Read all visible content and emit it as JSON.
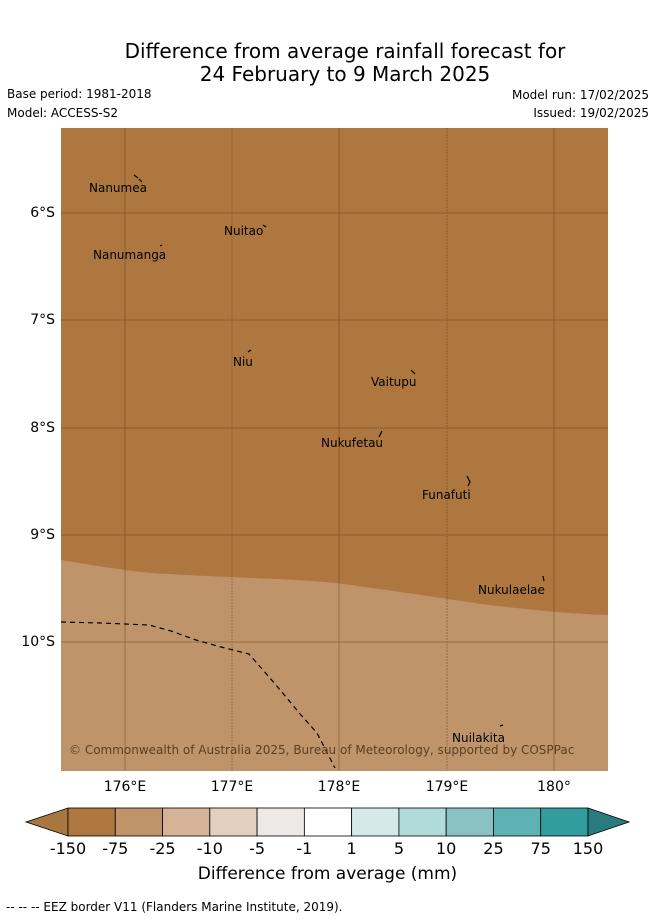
{
  "title": {
    "line1": "Difference from average rainfall forecast for",
    "line2": "24 February to 9 March 2025"
  },
  "meta": {
    "base_period": "Base period: 1981-2018",
    "model": "Model: ACCESS-S2",
    "model_run": "Model run: 17/02/2025",
    "issued": "Issued: 19/02/2025"
  },
  "map": {
    "lat_ticks": [
      "6°S",
      "7°S",
      "8°S",
      "9°S",
      "10°S"
    ],
    "lon_ticks": [
      "176°E",
      "177°E",
      "178°E",
      "179°E",
      "180°"
    ],
    "places": [
      "Nanumea",
      "Nuitao",
      "Nanumanga",
      "Niu",
      "Vaitupu",
      "Nukufetau",
      "Funafuti",
      "Nukulaelae",
      "Nuilakita"
    ],
    "copyright": "© Commonwealth of Australia 2025, Bureau of Meteorology, supported by COSPPac",
    "colors": {
      "dry_strong": "#ad773f",
      "dry_moderate": "#c0946a"
    }
  },
  "colorbar": {
    "ticks": [
      "-150",
      "-75",
      "-25",
      "-10",
      "-5",
      "-1",
      "1",
      "5",
      "10",
      "25",
      "75",
      "150"
    ],
    "colors": [
      "#a8763f",
      "#ad773f",
      "#c0946a",
      "#d4b396",
      "#e4d0bf",
      "#ede9e6",
      "#ffffff",
      "#d5e9e8",
      "#b0dbd9",
      "#8ac2c3",
      "#5eb1b4",
      "#339d9e",
      "#2a7b7d"
    ],
    "label": "Difference from average (mm)"
  },
  "footer": "-- -- -- EEZ border V11 (Flanders Marine Institute, 2019)."
}
